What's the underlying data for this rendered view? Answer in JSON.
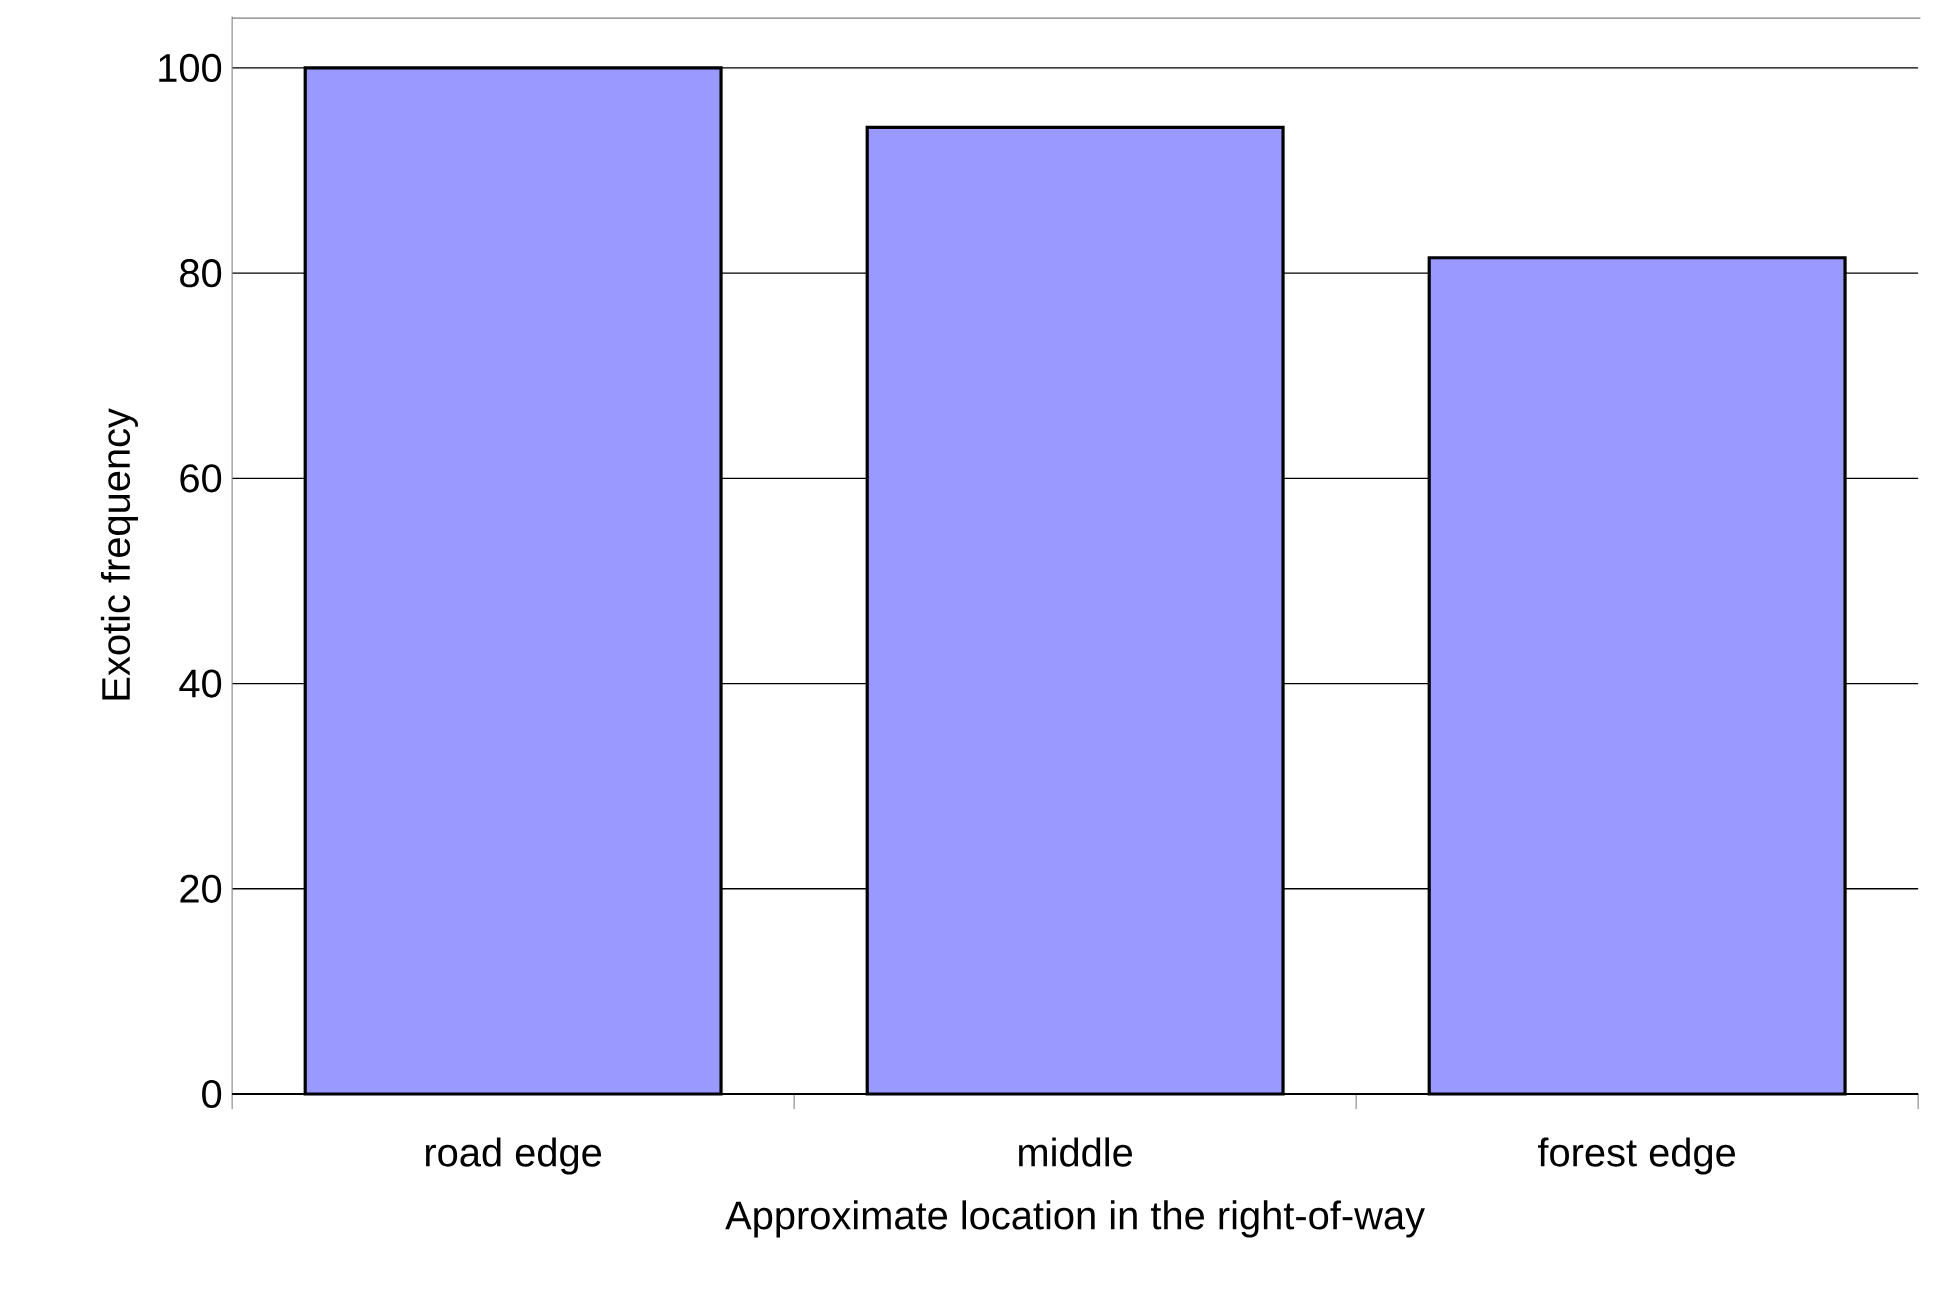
{
  "chart_data": {
    "type": "bar",
    "xlabel": "Approximate location in the right-of-way",
    "ylabel": "Exotic frequency",
    "categories": [
      "road edge",
      "middle",
      "forest edge"
    ],
    "values": [
      100,
      94.2,
      81.5
    ],
    "color": "#9999ff",
    "ylim": [
      0,
      105
    ],
    "yticks": [
      0,
      20,
      40,
      60,
      80,
      100
    ],
    "grid": "y"
  }
}
